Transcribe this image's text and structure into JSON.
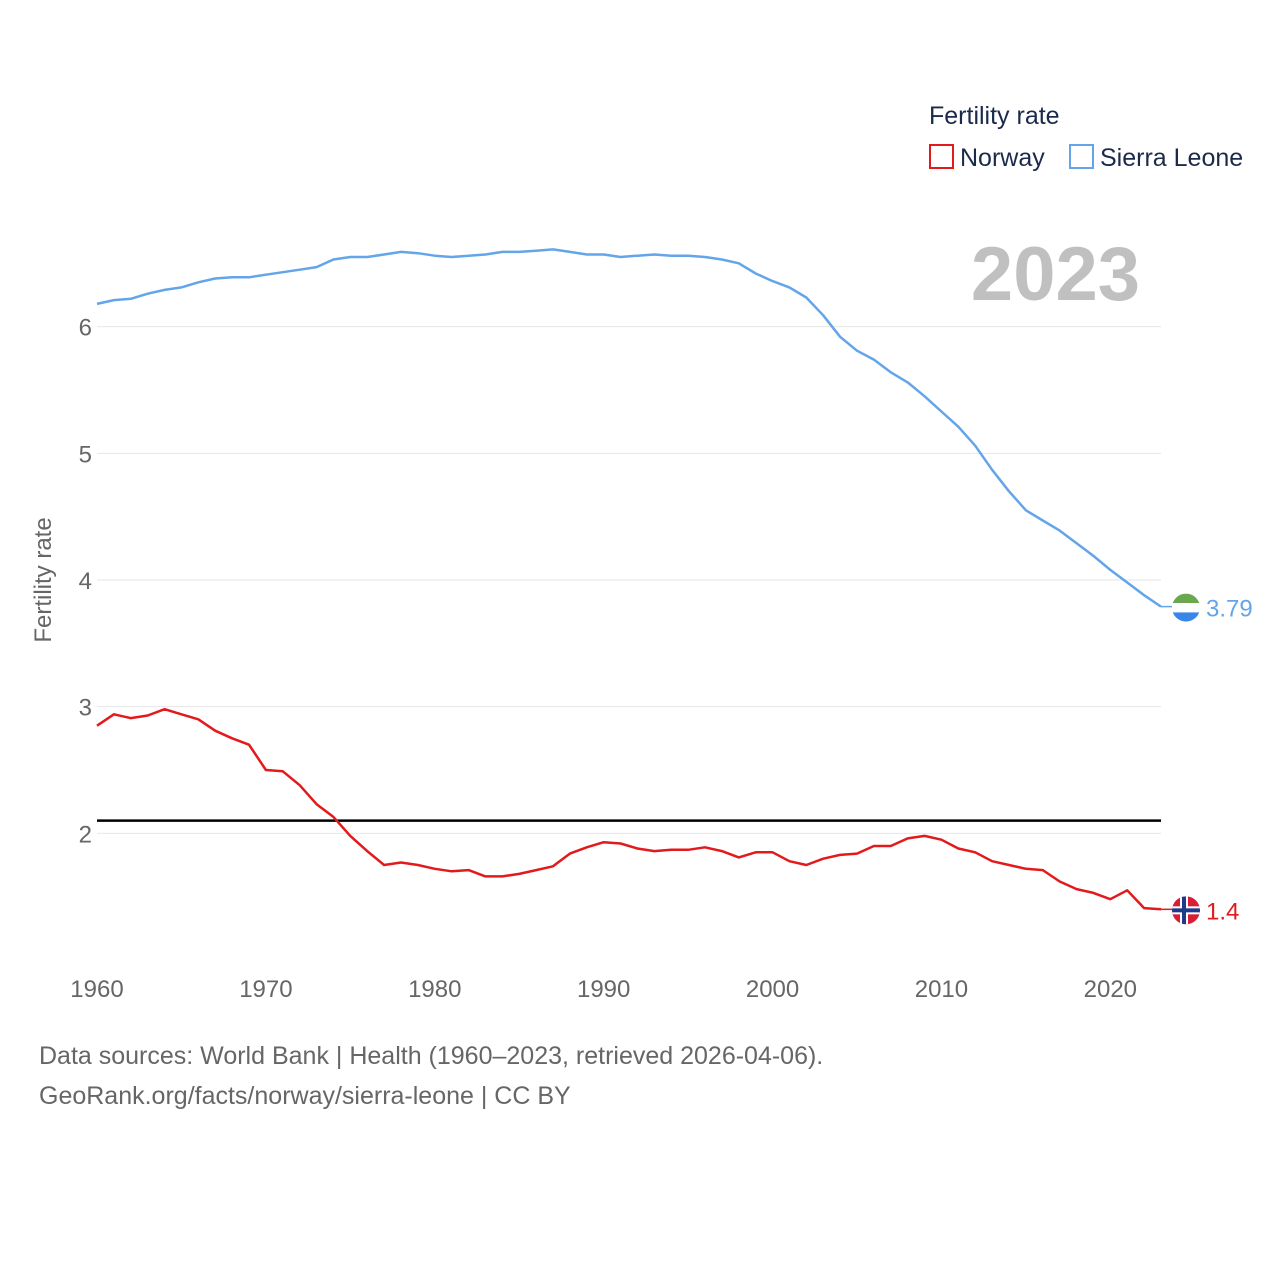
{
  "chart_data": {
    "type": "line",
    "title": "",
    "ylabel": "Fertility rate",
    "xlabel": "",
    "legend_title": "Fertility rate",
    "year_label": "2023",
    "xlim": [
      1960,
      2023
    ],
    "ylim": [
      1.0,
      7.0
    ],
    "x_ticks": [
      "1960",
      "1970",
      "1980",
      "1990",
      "2000",
      "2010",
      "2020"
    ],
    "y_ticks": [
      "2",
      "3",
      "4",
      "5",
      "6"
    ],
    "reference_line": 2.1,
    "x": [
      1960,
      1961,
      1962,
      1963,
      1964,
      1965,
      1966,
      1967,
      1968,
      1969,
      1970,
      1971,
      1972,
      1973,
      1974,
      1975,
      1976,
      1977,
      1978,
      1979,
      1980,
      1981,
      1982,
      1983,
      1984,
      1985,
      1986,
      1987,
      1988,
      1989,
      1990,
      1991,
      1992,
      1993,
      1994,
      1995,
      1996,
      1997,
      1998,
      1999,
      2000,
      2001,
      2002,
      2003,
      2004,
      2005,
      2006,
      2007,
      2008,
      2009,
      2010,
      2011,
      2012,
      2013,
      2014,
      2015,
      2016,
      2017,
      2018,
      2019,
      2020,
      2021,
      2022,
      2023
    ],
    "series": [
      {
        "name": "Norway",
        "color": "#e31a1c",
        "end_label": "1.4",
        "values": [
          2.85,
          2.94,
          2.91,
          2.93,
          2.98,
          2.94,
          2.9,
          2.81,
          2.75,
          2.7,
          2.5,
          2.49,
          2.38,
          2.23,
          2.13,
          1.98,
          1.86,
          1.75,
          1.77,
          1.75,
          1.72,
          1.7,
          1.71,
          1.66,
          1.66,
          1.68,
          1.71,
          1.74,
          1.84,
          1.89,
          1.93,
          1.92,
          1.88,
          1.86,
          1.87,
          1.87,
          1.89,
          1.86,
          1.81,
          1.85,
          1.85,
          1.78,
          1.75,
          1.8,
          1.83,
          1.84,
          1.9,
          1.9,
          1.96,
          1.98,
          1.95,
          1.88,
          1.85,
          1.78,
          1.75,
          1.72,
          1.71,
          1.62,
          1.56,
          1.53,
          1.48,
          1.55,
          1.41,
          1.4
        ]
      },
      {
        "name": "Sierra Leone",
        "color": "#63a5e8",
        "end_label": "3.79",
        "values": [
          6.18,
          6.21,
          6.22,
          6.26,
          6.29,
          6.31,
          6.35,
          6.38,
          6.39,
          6.39,
          6.41,
          6.43,
          6.45,
          6.47,
          6.53,
          6.55,
          6.55,
          6.57,
          6.59,
          6.58,
          6.56,
          6.55,
          6.56,
          6.57,
          6.59,
          6.59,
          6.6,
          6.61,
          6.59,
          6.57,
          6.57,
          6.55,
          6.56,
          6.57,
          6.56,
          6.56,
          6.55,
          6.53,
          6.5,
          6.42,
          6.36,
          6.31,
          6.23,
          6.09,
          5.92,
          5.81,
          5.74,
          5.64,
          5.56,
          5.45,
          5.33,
          5.21,
          5.06,
          4.87,
          4.7,
          4.55,
          4.47,
          4.39,
          4.29,
          4.19,
          4.08,
          3.98,
          3.88,
          3.79
        ]
      }
    ]
  },
  "footer": {
    "line1": "Data sources: World Bank | Health (1960–2023, retrieved 2026-04-06).",
    "line2": "GeoRank.org/facts/norway/sierra-leone | CC BY"
  }
}
